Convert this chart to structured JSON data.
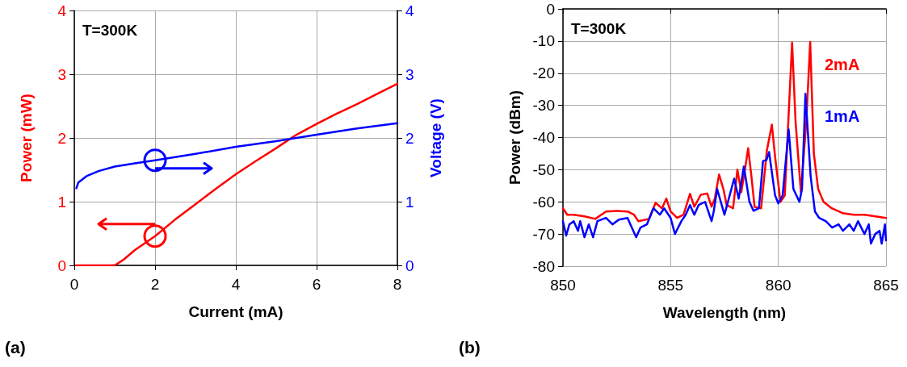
{
  "chart_data": [
    {
      "type": "line",
      "xlabel": "Current (mA)",
      "ylabel": "Power (mW)",
      "y2label": "Voltage (V)",
      "annotations": [
        "T=300K",
        "(a)"
      ],
      "xlim": [
        0,
        8
      ],
      "xticks": [
        0,
        2,
        4,
        6,
        8
      ],
      "ylim": [
        0,
        4
      ],
      "yticks": [
        0,
        1,
        2,
        3,
        4
      ],
      "y2lim": [
        0,
        4
      ],
      "y2ticks": [
        0,
        1,
        2,
        3,
        4
      ],
      "grid": true,
      "legend": false,
      "marker": "none",
      "line_style": "solid",
      "series": [
        {
          "color": "#ff0000",
          "x": [
            0.05,
            0.5,
            1.0,
            1.2,
            1.5,
            2,
            2.5,
            3,
            3.5,
            4,
            4.5,
            5,
            5.5,
            6,
            6.5,
            7,
            7.5,
            8
          ],
          "values": [
            0,
            0,
            0,
            0.08,
            0.24,
            0.46,
            0.72,
            0.96,
            1.2,
            1.43,
            1.64,
            1.84,
            2.05,
            2.22,
            2.38,
            2.53,
            2.69,
            2.85
          ]
        },
        {
          "color": "#0000ff",
          "axis": "y2",
          "x": [
            0.05,
            0.1,
            0.3,
            0.6,
            1.0,
            1.5,
            2,
            3,
            4,
            5,
            6,
            7,
            8
          ],
          "values": [
            1.21,
            1.3,
            1.4,
            1.48,
            1.55,
            1.6,
            1.65,
            1.75,
            1.86,
            1.95,
            2.05,
            2.15,
            2.23
          ]
        }
      ]
    },
    {
      "type": "line",
      "xlabel": "Wavelength (nm)",
      "ylabel": "Power (dBm)",
      "annotations": [
        "T=300K",
        "(b)"
      ],
      "xlim": [
        850,
        865
      ],
      "xticks": [
        850,
        855,
        860,
        865
      ],
      "ylim": [
        -80,
        0
      ],
      "yticks": [
        -80,
        -70,
        -60,
        -50,
        -40,
        -30,
        -20,
        -10,
        0
      ],
      "grid": true,
      "legend": false,
      "marker": "none",
      "line_style": "solid",
      "series": [
        {
          "name": "2mA",
          "color": "#ff0000",
          "x": [
            850.0,
            850.2,
            850.5,
            851,
            851.5,
            852,
            852.5,
            853,
            853.3,
            853.5,
            854,
            854.3,
            854.6,
            854.8,
            855,
            855.3,
            855.6,
            855.9,
            856.1,
            856.4,
            856.7,
            856.9,
            857.05,
            857.25,
            857.45,
            857.6,
            857.9,
            858.1,
            858.28,
            858.45,
            858.6,
            858.75,
            858.9,
            859.2,
            859.47,
            859.7,
            859.85,
            860.1,
            860.3,
            860.5,
            860.64,
            860.8,
            861.05,
            861.3,
            861.48,
            861.65,
            861.85,
            862.1,
            862.48,
            862.98,
            863.5,
            864,
            864.5,
            865
          ],
          "values": [
            -62,
            -64,
            -64,
            -64.5,
            -65.3,
            -63,
            -62.8,
            -63,
            -64,
            -66,
            -65.3,
            -60.3,
            -62,
            -59,
            -63,
            -65,
            -64,
            -57.5,
            -61.5,
            -57.8,
            -57.4,
            -61.5,
            -59,
            -51.5,
            -56,
            -61,
            -62,
            -50,
            -57,
            -50,
            -43.3,
            -52,
            -61.6,
            -62,
            -44,
            -36,
            -46,
            -60,
            -58,
            -30,
            -10.5,
            -35,
            -57,
            -35,
            -10.3,
            -45,
            -56,
            -60,
            -62,
            -63.5,
            -64,
            -64,
            -64.5,
            -65
          ]
        },
        {
          "name": "1mA",
          "color": "#0000ff",
          "x": [
            850.0,
            850.15,
            850.3,
            850.5,
            850.7,
            850.8,
            851.0,
            851.2,
            851.4,
            851.6,
            852,
            852.3,
            852.6,
            853,
            853.2,
            853.4,
            853.6,
            853.9,
            854.2,
            854.5,
            854.7,
            855.0,
            855.2,
            855.5,
            855.7,
            855.9,
            856.1,
            856.3,
            856.6,
            856.9,
            857.0,
            857.16,
            857.5,
            857.95,
            858.16,
            858.4,
            858.66,
            858.85,
            859.1,
            859.29,
            859.45,
            859.57,
            859.85,
            860.0,
            860.2,
            860.48,
            860.7,
            860.98,
            861.1,
            861.26,
            861.5,
            861.7,
            861.9,
            862.2,
            862.5,
            862.8,
            863.0,
            863.3,
            863.5,
            863.7,
            864.0,
            864.2,
            864.3,
            864.5,
            864.7,
            864.8,
            864.95,
            865
          ],
          "values": [
            -66,
            -70.5,
            -67,
            -66,
            -69,
            -66,
            -71,
            -67,
            -71,
            -66,
            -65,
            -67,
            -65.5,
            -65,
            -68,
            -71,
            -68,
            -67,
            -62,
            -64,
            -62,
            -65,
            -70,
            -66,
            -64,
            -61,
            -64,
            -61,
            -60,
            -66,
            -63,
            -56,
            -64,
            -52.8,
            -59,
            -49,
            -60,
            -62.8,
            -62,
            -47.3,
            -47,
            -44.5,
            -58,
            -60.5,
            -58,
            -37.5,
            -56,
            -60,
            -56,
            -26.4,
            -52,
            -63,
            -65,
            -66,
            -68,
            -67,
            -69,
            -67,
            -69,
            -66,
            -70,
            -67,
            -73,
            -70,
            -69,
            -73,
            -67,
            -72
          ]
        }
      ]
    }
  ]
}
